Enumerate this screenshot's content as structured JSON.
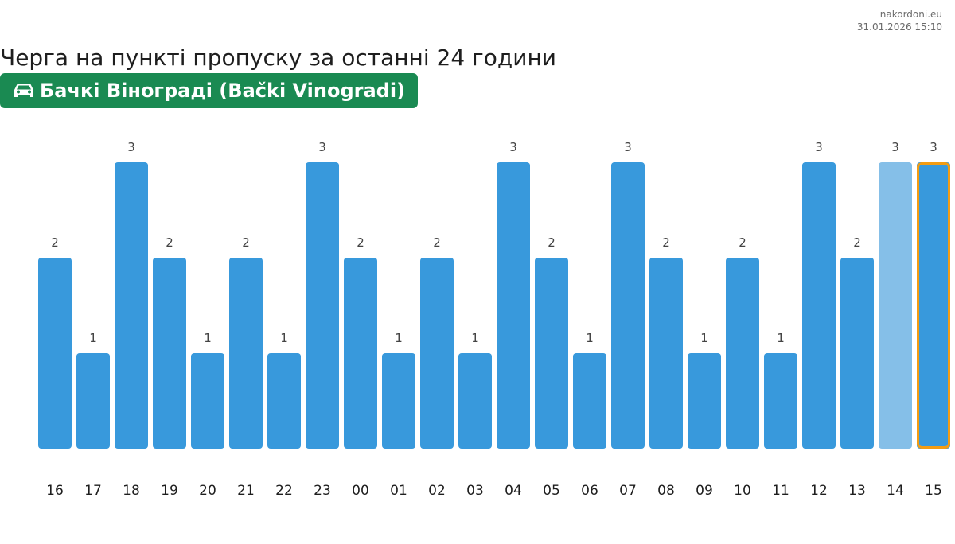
{
  "source": {
    "site": "nakordoni.eu",
    "timestamp": "31.01.2026 15:10"
  },
  "title": "Черга на пункті пропуску за останні 24 години",
  "checkpoint": {
    "name": "Бачкі Віноградi (Bački Vinogradi)",
    "icon": "car-icon"
  },
  "colors": {
    "bar": "#3899dc",
    "bar_forecast": "#85bfe8",
    "highlight_border": "#f39c12",
    "badge": "#1a8a52"
  },
  "chart_data": {
    "type": "bar",
    "categories": [
      "16",
      "17",
      "18",
      "19",
      "20",
      "21",
      "22",
      "23",
      "00",
      "01",
      "02",
      "03",
      "04",
      "05",
      "06",
      "07",
      "08",
      "09",
      "10",
      "11",
      "12",
      "13",
      "14",
      "15"
    ],
    "values": [
      2,
      1,
      3,
      2,
      1,
      2,
      1,
      3,
      2,
      1,
      2,
      1,
      3,
      2,
      1,
      3,
      2,
      1,
      2,
      1,
      3,
      2,
      3,
      3
    ],
    "data_labels": [
      "2",
      "1",
      "3",
      "2",
      "1",
      "2",
      "1",
      "3",
      "2",
      "1",
      "2",
      "1",
      "3",
      "2",
      "1",
      "3",
      "2",
      "1",
      "2",
      "1",
      "3",
      "2",
      "3",
      "3"
    ],
    "ylim": [
      0,
      3
    ],
    "lighter_bar_category": "14",
    "highlighted_category": "15",
    "grid": false,
    "title": "",
    "xlabel": "",
    "ylabel": ""
  }
}
